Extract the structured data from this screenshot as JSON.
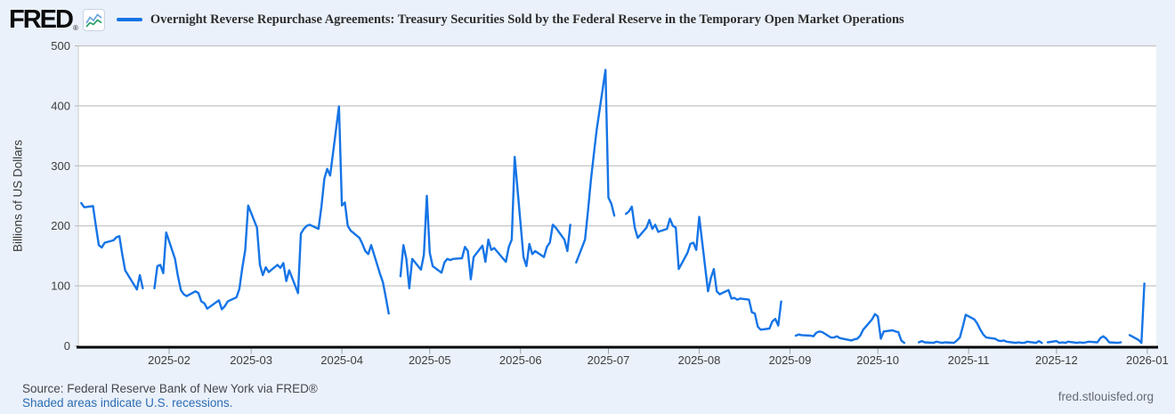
{
  "header": {
    "logo_text": "FRED",
    "logo_reg": "®"
  },
  "footer": {
    "source": "Source: Federal Reserve Bank of New York via FRED®",
    "recessions_note": "Shaded areas indicate U.S. recessions.",
    "site": "fred.stlouisfed.org"
  },
  "chart_data": {
    "type": "line",
    "title": "Overnight Reverse Repurchase Agreements: Treasury Securities Sold by the Federal Reserve in the Temporary Open Market Operations",
    "xlabel": "",
    "ylabel": "Billions of US Dollars",
    "ylim": [
      0,
      500
    ],
    "yticks": [
      0,
      100,
      200,
      300,
      400,
      500
    ],
    "x_type": "time",
    "x_range": [
      "2025-01-01",
      "2026-01-02"
    ],
    "xticks": [
      "2025-02",
      "2025-03",
      "2025-04",
      "2025-05",
      "2025-06",
      "2025-07",
      "2025-08",
      "2025-09",
      "2025-10",
      "2025-11",
      "2025-12",
      "2026-01"
    ],
    "grid": true,
    "legend_position": "top-left",
    "line_color": "#1574e6",
    "series": [
      {
        "name": "Overnight Reverse Repurchase Agreements: Treasury Securities Sold by the Federal Reserve in the Temporary Open Market Operations",
        "color": "#1574e6",
        "points": [
          [
            "2025-01-02",
            238
          ],
          [
            "2025-01-03",
            231
          ],
          [
            "2025-01-06",
            233
          ],
          [
            "2025-01-07",
            200
          ],
          [
            "2025-01-08",
            168
          ],
          [
            "2025-01-09",
            164
          ],
          [
            "2025-01-10",
            172
          ],
          [
            "2025-01-13",
            176
          ],
          [
            "2025-01-14",
            181
          ],
          [
            "2025-01-15",
            183
          ],
          [
            "2025-01-16",
            153
          ],
          [
            "2025-01-17",
            126
          ],
          [
            "2025-01-21",
            94
          ],
          [
            "2025-01-22",
            118
          ],
          [
            "2025-01-23",
            96
          ],
          [
            "2025-01-24",
            null
          ],
          [
            "2025-01-27",
            96
          ],
          [
            "2025-01-28",
            133
          ],
          [
            "2025-01-29",
            135
          ],
          [
            "2025-01-30",
            121
          ],
          [
            "2025-01-31",
            189
          ],
          [
            "2025-02-03",
            145
          ],
          [
            "2025-02-04",
            116
          ],
          [
            "2025-02-05",
            93
          ],
          [
            "2025-02-06",
            86
          ],
          [
            "2025-02-07",
            83
          ],
          [
            "2025-02-10",
            91
          ],
          [
            "2025-02-11",
            88
          ],
          [
            "2025-02-12",
            74
          ],
          [
            "2025-02-13",
            71
          ],
          [
            "2025-02-14",
            62
          ],
          [
            "2025-02-18",
            76
          ],
          [
            "2025-02-19",
            61
          ],
          [
            "2025-02-20",
            66
          ],
          [
            "2025-02-21",
            74
          ],
          [
            "2025-02-24",
            81
          ],
          [
            "2025-02-25",
            95
          ],
          [
            "2025-02-26",
            130
          ],
          [
            "2025-02-27",
            160
          ],
          [
            "2025-02-28",
            234
          ],
          [
            "2025-03-03",
            197
          ],
          [
            "2025-03-04",
            135
          ],
          [
            "2025-03-05",
            118
          ],
          [
            "2025-03-06",
            131
          ],
          [
            "2025-03-07",
            123
          ],
          [
            "2025-03-10",
            135
          ],
          [
            "2025-03-11",
            130
          ],
          [
            "2025-03-12",
            138
          ],
          [
            "2025-03-13",
            108
          ],
          [
            "2025-03-14",
            126
          ],
          [
            "2025-03-17",
            88
          ],
          [
            "2025-03-18",
            187
          ],
          [
            "2025-03-19",
            195
          ],
          [
            "2025-03-20",
            200
          ],
          [
            "2025-03-21",
            202
          ],
          [
            "2025-03-24",
            195
          ],
          [
            "2025-03-25",
            232
          ],
          [
            "2025-03-26",
            279
          ],
          [
            "2025-03-27",
            295
          ],
          [
            "2025-03-28",
            284
          ],
          [
            "2025-03-31",
            399
          ],
          [
            "2025-04-01",
            234
          ],
          [
            "2025-04-02",
            239
          ],
          [
            "2025-04-03",
            200
          ],
          [
            "2025-04-04",
            192
          ],
          [
            "2025-04-07",
            180
          ],
          [
            "2025-04-08",
            170
          ],
          [
            "2025-04-09",
            158
          ],
          [
            "2025-04-10",
            153
          ],
          [
            "2025-04-11",
            168
          ],
          [
            "2025-04-14",
            120
          ],
          [
            "2025-04-15",
            106
          ],
          [
            "2025-04-16",
            81
          ],
          [
            "2025-04-17",
            54
          ],
          [
            "2025-04-18",
            null
          ],
          [
            "2025-04-21",
            116
          ],
          [
            "2025-04-22",
            168
          ],
          [
            "2025-04-23",
            145
          ],
          [
            "2025-04-24",
            96
          ],
          [
            "2025-04-25",
            145
          ],
          [
            "2025-04-28",
            127
          ],
          [
            "2025-04-29",
            152
          ],
          [
            "2025-04-30",
            250
          ],
          [
            "2025-05-01",
            155
          ],
          [
            "2025-05-02",
            133
          ],
          [
            "2025-05-05",
            122
          ],
          [
            "2025-05-06",
            139
          ],
          [
            "2025-05-07",
            145
          ],
          [
            "2025-05-08",
            143
          ],
          [
            "2025-05-09",
            145
          ],
          [
            "2025-05-12",
            146
          ],
          [
            "2025-05-13",
            165
          ],
          [
            "2025-05-14",
            158
          ],
          [
            "2025-05-15",
            111
          ],
          [
            "2025-05-16",
            148
          ],
          [
            "2025-05-19",
            167
          ],
          [
            "2025-05-20",
            140
          ],
          [
            "2025-05-21",
            177
          ],
          [
            "2025-05-22",
            160
          ],
          [
            "2025-05-23",
            163
          ],
          [
            "2025-05-27",
            140
          ],
          [
            "2025-05-28",
            165
          ],
          [
            "2025-05-29",
            177
          ],
          [
            "2025-05-30",
            315
          ],
          [
            "2025-06-02",
            148
          ],
          [
            "2025-06-03",
            133
          ],
          [
            "2025-06-04",
            170
          ],
          [
            "2025-06-05",
            153
          ],
          [
            "2025-06-06",
            158
          ],
          [
            "2025-06-09",
            148
          ],
          [
            "2025-06-10",
            165
          ],
          [
            "2025-06-11",
            172
          ],
          [
            "2025-06-12",
            202
          ],
          [
            "2025-06-13",
            197
          ],
          [
            "2025-06-16",
            177
          ],
          [
            "2025-06-17",
            158
          ],
          [
            "2025-06-18",
            202
          ],
          [
            "2025-06-19",
            null
          ],
          [
            "2025-06-20",
            139
          ],
          [
            "2025-06-23",
            177
          ],
          [
            "2025-06-24",
            224
          ],
          [
            "2025-06-25",
            276
          ],
          [
            "2025-06-26",
            318
          ],
          [
            "2025-06-27",
            360
          ],
          [
            "2025-06-30",
            460
          ],
          [
            "2025-07-01",
            247
          ],
          [
            "2025-07-02",
            237
          ],
          [
            "2025-07-03",
            217
          ],
          [
            "2025-07-04",
            null
          ],
          [
            "2025-07-07",
            220
          ],
          [
            "2025-07-08",
            224
          ],
          [
            "2025-07-09",
            232
          ],
          [
            "2025-07-10",
            197
          ],
          [
            "2025-07-11",
            180
          ],
          [
            "2025-07-14",
            197
          ],
          [
            "2025-07-15",
            210
          ],
          [
            "2025-07-16",
            195
          ],
          [
            "2025-07-17",
            202
          ],
          [
            "2025-07-18",
            190
          ],
          [
            "2025-07-21",
            195
          ],
          [
            "2025-07-22",
            212
          ],
          [
            "2025-07-23",
            200
          ],
          [
            "2025-07-24",
            197
          ],
          [
            "2025-07-25",
            128
          ],
          [
            "2025-07-28",
            155
          ],
          [
            "2025-07-29",
            170
          ],
          [
            "2025-07-30",
            172
          ],
          [
            "2025-07-31",
            160
          ],
          [
            "2025-08-01",
            215
          ],
          [
            "2025-08-04",
            91
          ],
          [
            "2025-08-05",
            113
          ],
          [
            "2025-08-06",
            128
          ],
          [
            "2025-08-07",
            91
          ],
          [
            "2025-08-08",
            86
          ],
          [
            "2025-08-11",
            93
          ],
          [
            "2025-08-12",
            79
          ],
          [
            "2025-08-13",
            80
          ],
          [
            "2025-08-14",
            77
          ],
          [
            "2025-08-15",
            79
          ],
          [
            "2025-08-18",
            77
          ],
          [
            "2025-08-19",
            56
          ],
          [
            "2025-08-20",
            54
          ],
          [
            "2025-08-21",
            32
          ],
          [
            "2025-08-22",
            27
          ],
          [
            "2025-08-25",
            29
          ],
          [
            "2025-08-26",
            41
          ],
          [
            "2025-08-27",
            45
          ],
          [
            "2025-08-28",
            34
          ],
          [
            "2025-08-29",
            74
          ],
          [
            "2025-09-01",
            null
          ],
          [
            "2025-09-03",
            17
          ],
          [
            "2025-09-04",
            19
          ],
          [
            "2025-09-05",
            18
          ],
          [
            "2025-09-08",
            17
          ],
          [
            "2025-09-09",
            16
          ],
          [
            "2025-09-10",
            22
          ],
          [
            "2025-09-11",
            24
          ],
          [
            "2025-09-12",
            23
          ],
          [
            "2025-09-15",
            14
          ],
          [
            "2025-09-16",
            14
          ],
          [
            "2025-09-17",
            16
          ],
          [
            "2025-09-18",
            13
          ],
          [
            "2025-09-19",
            12
          ],
          [
            "2025-09-22",
            9
          ],
          [
            "2025-09-23",
            11
          ],
          [
            "2025-09-24",
            12
          ],
          [
            "2025-09-25",
            17
          ],
          [
            "2025-09-26",
            27
          ],
          [
            "2025-09-29",
            44
          ],
          [
            "2025-09-30",
            53
          ],
          [
            "2025-10-01",
            49
          ],
          [
            "2025-10-02",
            12
          ],
          [
            "2025-10-03",
            24
          ],
          [
            "2025-10-06",
            26
          ],
          [
            "2025-10-07",
            24
          ],
          [
            "2025-10-08",
            23
          ],
          [
            "2025-10-09",
            9
          ],
          [
            "2025-10-10",
            5
          ],
          [
            "2025-10-13",
            null
          ],
          [
            "2025-10-15",
            6
          ],
          [
            "2025-10-16",
            8
          ],
          [
            "2025-10-17",
            6
          ],
          [
            "2025-10-20",
            5
          ],
          [
            "2025-10-21",
            7
          ],
          [
            "2025-10-22",
            6
          ],
          [
            "2025-10-23",
            5
          ],
          [
            "2025-10-24",
            6
          ],
          [
            "2025-10-27",
            5
          ],
          [
            "2025-10-28",
            9
          ],
          [
            "2025-10-29",
            14
          ],
          [
            "2025-10-30",
            32
          ],
          [
            "2025-10-31",
            52
          ],
          [
            "2025-11-03",
            44
          ],
          [
            "2025-11-04",
            37
          ],
          [
            "2025-11-05",
            27
          ],
          [
            "2025-11-06",
            19
          ],
          [
            "2025-11-07",
            14
          ],
          [
            "2025-11-10",
            12
          ],
          [
            "2025-11-11",
            9
          ],
          [
            "2025-11-12",
            8
          ],
          [
            "2025-11-13",
            9
          ],
          [
            "2025-11-14",
            7
          ],
          [
            "2025-11-17",
            5
          ],
          [
            "2025-11-18",
            6
          ],
          [
            "2025-11-19",
            5
          ],
          [
            "2025-11-20",
            5
          ],
          [
            "2025-11-21",
            7
          ],
          [
            "2025-11-24",
            5
          ],
          [
            "2025-11-25",
            8
          ],
          [
            "2025-11-26",
            5
          ],
          [
            "2025-11-27",
            null
          ],
          [
            "2025-11-28",
            6
          ],
          [
            "2025-12-01",
            8
          ],
          [
            "2025-12-02",
            5
          ],
          [
            "2025-12-03",
            6
          ],
          [
            "2025-12-04",
            5
          ],
          [
            "2025-12-05",
            7
          ],
          [
            "2025-12-08",
            5
          ],
          [
            "2025-12-09",
            6
          ],
          [
            "2025-12-10",
            5
          ],
          [
            "2025-12-11",
            6
          ],
          [
            "2025-12-12",
            7
          ],
          [
            "2025-12-15",
            6
          ],
          [
            "2025-12-16",
            13
          ],
          [
            "2025-12-17",
            16
          ],
          [
            "2025-12-18",
            12
          ],
          [
            "2025-12-19",
            6
          ],
          [
            "2025-12-22",
            5
          ],
          [
            "2025-12-23",
            6
          ],
          [
            "2025-12-24",
            null
          ],
          [
            "2025-12-26",
            18
          ],
          [
            "2025-12-29",
            10
          ],
          [
            "2025-12-30",
            5
          ],
          [
            "2025-12-31",
            104
          ],
          [
            "2026-01-01",
            null
          ],
          [
            "2026-01-02",
            3
          ]
        ]
      }
    ]
  }
}
